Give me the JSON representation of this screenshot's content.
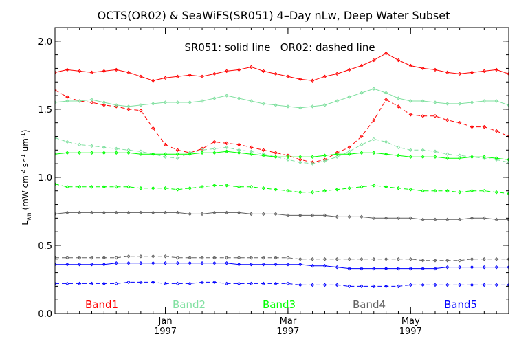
{
  "chart_data": {
    "type": "line",
    "title": "OCTS(OR02) & SeaWiFS(SR051) 4–Day nLw, Deep Water Subset",
    "annotation": "SR051: solid line   OR02: dashed line",
    "ylabel": "L_wn (mW cm^-2 sr^-1 um^-1)",
    "ylabel_main": "L",
    "ylabel_sub": "wn",
    "ylabel_rest": "(mW cm",
    "ylabel_exp1": "-2",
    "ylabel_mid": " sr",
    "ylabel_exp2": "-1",
    "ylabel_mid2": " um",
    "ylabel_exp3": "-1",
    "ylabel_end": ")",
    "xlabel": "",
    "xlim": [
      0,
      37
    ],
    "ylim": [
      0.0,
      2.1
    ],
    "yticks": [
      {
        "value": 0.0,
        "label": "0.0"
      },
      {
        "value": 0.5,
        "label": "0.5"
      },
      {
        "value": 1.0,
        "label": "1.0"
      },
      {
        "value": 1.5,
        "label": "1.5"
      },
      {
        "value": 2.0,
        "label": "2.0"
      }
    ],
    "xticks": [
      {
        "value": 9,
        "month": "Jan",
        "year": "1997"
      },
      {
        "value": 19,
        "month": "Mar",
        "year": "1997"
      },
      {
        "value": 29,
        "month": "May",
        "year": "1997"
      }
    ],
    "legend_position": "bottom",
    "legend": [
      {
        "label": "Band1",
        "color": "#ff0000"
      },
      {
        "label": "Band2",
        "color": "#80e0a0"
      },
      {
        "label": "Band3",
        "color": "#00ff00"
      },
      {
        "label": "Band4",
        "color": "#606060"
      },
      {
        "label": "Band5",
        "color": "#0000ff"
      }
    ],
    "series": [
      {
        "band": "Band1",
        "sensor": "SR051",
        "style": "solid",
        "color": "#ff0000",
        "x": [
          0,
          1,
          2,
          3,
          4,
          5,
          6,
          7,
          8,
          9,
          10,
          11,
          12,
          13,
          14,
          15,
          16,
          17,
          18,
          19,
          20,
          21,
          22,
          23,
          24,
          25,
          26,
          27,
          28,
          29,
          30,
          31,
          32,
          33,
          34,
          35,
          36,
          37
        ],
        "values": [
          1.77,
          1.79,
          1.78,
          1.77,
          1.78,
          1.79,
          1.77,
          1.74,
          1.71,
          1.73,
          1.74,
          1.75,
          1.74,
          1.76,
          1.78,
          1.79,
          1.81,
          1.78,
          1.76,
          1.74,
          1.72,
          1.71,
          1.74,
          1.76,
          1.79,
          1.82,
          1.86,
          1.91,
          1.86,
          1.82,
          1.8,
          1.79,
          1.77,
          1.76,
          1.77,
          1.78,
          1.79,
          1.76
        ]
      },
      {
        "band": "Band1",
        "sensor": "OR02",
        "style": "dashed",
        "color": "#ff0000",
        "x": [
          0,
          1,
          2,
          3,
          4,
          5,
          6,
          7,
          8,
          9,
          10,
          11,
          12,
          13,
          14,
          15,
          16,
          17,
          18,
          19,
          20,
          21,
          22,
          23,
          24,
          25,
          26,
          27,
          28,
          29,
          30,
          31,
          32,
          33,
          34,
          35,
          36,
          37
        ],
        "values": [
          1.64,
          1.59,
          1.56,
          1.55,
          1.53,
          1.52,
          1.5,
          1.49,
          1.36,
          1.24,
          1.2,
          1.18,
          1.21,
          1.26,
          1.25,
          1.24,
          1.22,
          1.2,
          1.18,
          1.16,
          1.13,
          1.11,
          1.13,
          1.18,
          1.22,
          1.3,
          1.42,
          1.57,
          1.52,
          1.46,
          1.45,
          1.45,
          1.42,
          1.4,
          1.37,
          1.37,
          1.34,
          1.3
        ]
      },
      {
        "band": "Band2",
        "sensor": "SR051",
        "style": "solid",
        "color": "#80e0a0",
        "x": [
          0,
          1,
          2,
          3,
          4,
          5,
          6,
          7,
          8,
          9,
          10,
          11,
          12,
          13,
          14,
          15,
          16,
          17,
          18,
          19,
          20,
          21,
          22,
          23,
          24,
          25,
          26,
          27,
          28,
          29,
          30,
          31,
          32,
          33,
          34,
          35,
          36,
          37
        ],
        "values": [
          1.55,
          1.56,
          1.56,
          1.57,
          1.55,
          1.53,
          1.52,
          1.53,
          1.54,
          1.55,
          1.55,
          1.55,
          1.56,
          1.58,
          1.6,
          1.58,
          1.56,
          1.54,
          1.53,
          1.52,
          1.51,
          1.52,
          1.53,
          1.56,
          1.59,
          1.62,
          1.65,
          1.62,
          1.58,
          1.56,
          1.56,
          1.55,
          1.54,
          1.54,
          1.55,
          1.56,
          1.56,
          1.53
        ]
      },
      {
        "band": "Band2",
        "sensor": "OR02",
        "style": "dashed",
        "color": "#80e0a0",
        "x": [
          0,
          1,
          2,
          3,
          4,
          5,
          6,
          7,
          8,
          9,
          10,
          11,
          12,
          13,
          14,
          15,
          16,
          17,
          18,
          19,
          20,
          21,
          22,
          23,
          24,
          25,
          26,
          27,
          28,
          29,
          30,
          31,
          32,
          33,
          34,
          35,
          36,
          37
        ],
        "values": [
          1.29,
          1.26,
          1.24,
          1.23,
          1.22,
          1.21,
          1.2,
          1.19,
          1.17,
          1.15,
          1.14,
          1.18,
          1.2,
          1.21,
          1.22,
          1.2,
          1.19,
          1.17,
          1.15,
          1.13,
          1.11,
          1.1,
          1.12,
          1.15,
          1.19,
          1.24,
          1.28,
          1.26,
          1.22,
          1.2,
          1.2,
          1.19,
          1.17,
          1.16,
          1.15,
          1.14,
          1.13,
          1.11
        ]
      },
      {
        "band": "Band3",
        "sensor": "SR051",
        "style": "solid",
        "color": "#00ff00",
        "x": [
          0,
          1,
          2,
          3,
          4,
          5,
          6,
          7,
          8,
          9,
          10,
          11,
          12,
          13,
          14,
          15,
          16,
          17,
          18,
          19,
          20,
          21,
          22,
          23,
          24,
          25,
          26,
          27,
          28,
          29,
          30,
          31,
          32,
          33,
          34,
          35,
          36,
          37
        ],
        "values": [
          1.17,
          1.18,
          1.18,
          1.18,
          1.18,
          1.18,
          1.18,
          1.17,
          1.17,
          1.17,
          1.17,
          1.17,
          1.18,
          1.18,
          1.19,
          1.18,
          1.17,
          1.16,
          1.15,
          1.15,
          1.15,
          1.15,
          1.16,
          1.17,
          1.17,
          1.18,
          1.18,
          1.17,
          1.16,
          1.15,
          1.15,
          1.15,
          1.14,
          1.14,
          1.15,
          1.15,
          1.14,
          1.13
        ]
      },
      {
        "band": "Band3",
        "sensor": "OR02",
        "style": "dashed",
        "color": "#00ff00",
        "x": [
          0,
          1,
          2,
          3,
          4,
          5,
          6,
          7,
          8,
          9,
          10,
          11,
          12,
          13,
          14,
          15,
          16,
          17,
          18,
          19,
          20,
          21,
          22,
          23,
          24,
          25,
          26,
          27,
          28,
          29,
          30,
          31,
          32,
          33,
          34,
          35,
          36,
          37
        ],
        "values": [
          0.95,
          0.93,
          0.93,
          0.93,
          0.93,
          0.93,
          0.93,
          0.92,
          0.92,
          0.92,
          0.91,
          0.92,
          0.93,
          0.94,
          0.94,
          0.93,
          0.93,
          0.92,
          0.91,
          0.9,
          0.89,
          0.89,
          0.9,
          0.91,
          0.92,
          0.93,
          0.94,
          0.93,
          0.92,
          0.91,
          0.9,
          0.9,
          0.9,
          0.89,
          0.9,
          0.9,
          0.89,
          0.88
        ]
      },
      {
        "band": "Band4",
        "sensor": "SR051",
        "style": "solid",
        "color": "#606060",
        "x": [
          0,
          1,
          2,
          3,
          4,
          5,
          6,
          7,
          8,
          9,
          10,
          11,
          12,
          13,
          14,
          15,
          16,
          17,
          18,
          19,
          20,
          21,
          22,
          23,
          24,
          25,
          26,
          27,
          28,
          29,
          30,
          31,
          32,
          33,
          34,
          35,
          36,
          37
        ],
        "values": [
          0.73,
          0.74,
          0.74,
          0.74,
          0.74,
          0.74,
          0.74,
          0.74,
          0.74,
          0.74,
          0.74,
          0.73,
          0.73,
          0.74,
          0.74,
          0.74,
          0.73,
          0.73,
          0.73,
          0.72,
          0.72,
          0.72,
          0.72,
          0.71,
          0.71,
          0.71,
          0.7,
          0.7,
          0.7,
          0.7,
          0.69,
          0.69,
          0.69,
          0.69,
          0.7,
          0.7,
          0.69,
          0.69
        ]
      },
      {
        "band": "Band4",
        "sensor": "OR02",
        "style": "dashed",
        "color": "#606060",
        "x": [
          0,
          1,
          2,
          3,
          4,
          5,
          6,
          7,
          8,
          9,
          10,
          11,
          12,
          13,
          14,
          15,
          16,
          17,
          18,
          19,
          20,
          21,
          22,
          23,
          24,
          25,
          26,
          27,
          28,
          29,
          30,
          31,
          32,
          33,
          34,
          35,
          36,
          37
        ],
        "values": [
          0.41,
          0.41,
          0.41,
          0.41,
          0.41,
          0.41,
          0.42,
          0.42,
          0.42,
          0.42,
          0.41,
          0.41,
          0.41,
          0.41,
          0.41,
          0.41,
          0.41,
          0.41,
          0.41,
          0.41,
          0.4,
          0.4,
          0.4,
          0.4,
          0.4,
          0.4,
          0.4,
          0.4,
          0.4,
          0.4,
          0.39,
          0.39,
          0.39,
          0.39,
          0.4,
          0.4,
          0.4,
          0.4
        ]
      },
      {
        "band": "Band5",
        "sensor": "SR051",
        "style": "solid",
        "color": "#0000ff",
        "x": [
          0,
          1,
          2,
          3,
          4,
          5,
          6,
          7,
          8,
          9,
          10,
          11,
          12,
          13,
          14,
          15,
          16,
          17,
          18,
          19,
          20,
          21,
          22,
          23,
          24,
          25,
          26,
          27,
          28,
          29,
          30,
          31,
          32,
          33,
          34,
          35,
          36,
          37
        ],
        "values": [
          0.36,
          0.36,
          0.36,
          0.36,
          0.36,
          0.37,
          0.37,
          0.37,
          0.37,
          0.37,
          0.37,
          0.37,
          0.37,
          0.37,
          0.37,
          0.36,
          0.36,
          0.36,
          0.36,
          0.36,
          0.36,
          0.35,
          0.35,
          0.34,
          0.33,
          0.33,
          0.33,
          0.33,
          0.33,
          0.33,
          0.33,
          0.33,
          0.34,
          0.34,
          0.34,
          0.34,
          0.34,
          0.34
        ]
      },
      {
        "band": "Band5",
        "sensor": "OR02",
        "style": "dashed",
        "color": "#0000ff",
        "x": [
          0,
          1,
          2,
          3,
          4,
          5,
          6,
          7,
          8,
          9,
          10,
          11,
          12,
          13,
          14,
          15,
          16,
          17,
          18,
          19,
          20,
          21,
          22,
          23,
          24,
          25,
          26,
          27,
          28,
          29,
          30,
          31,
          32,
          33,
          34,
          35,
          36,
          37
        ],
        "values": [
          0.22,
          0.22,
          0.22,
          0.22,
          0.22,
          0.22,
          0.23,
          0.23,
          0.23,
          0.22,
          0.22,
          0.22,
          0.23,
          0.23,
          0.22,
          0.22,
          0.22,
          0.22,
          0.22,
          0.22,
          0.21,
          0.21,
          0.21,
          0.21,
          0.2,
          0.2,
          0.2,
          0.2,
          0.2,
          0.21,
          0.21,
          0.21,
          0.21,
          0.21,
          0.21,
          0.21,
          0.21,
          0.21
        ]
      }
    ]
  }
}
